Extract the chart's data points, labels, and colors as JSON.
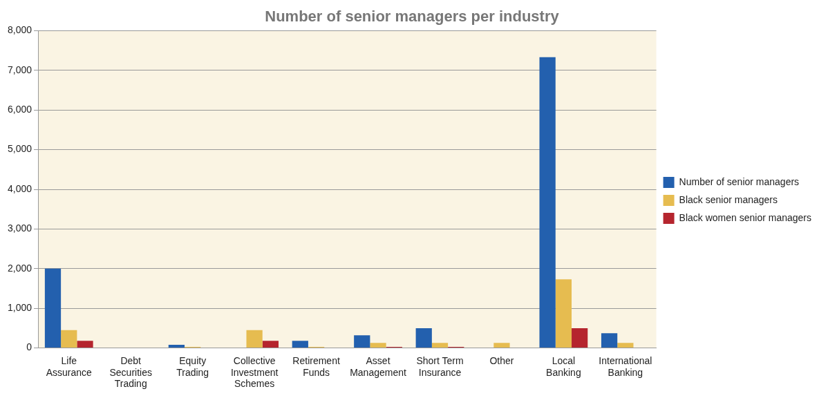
{
  "chart_data": {
    "type": "bar",
    "title": "Number of senior managers per industry",
    "categories": [
      "Life Assurance",
      "Debt Securities Trading",
      "Equity Trading",
      "Collective Investment Schemes",
      "Retirement Funds",
      "Asset Management",
      "Short Term Insurance",
      "Other",
      "Local Banking",
      "International Banking"
    ],
    "series": [
      {
        "name": "Number of senior managers",
        "color": "#2360ae",
        "values": [
          2000,
          0,
          80,
          0,
          180,
          320,
          500,
          0,
          7330,
          370
        ]
      },
      {
        "name": "Black senior managers",
        "color": "#e6bc50",
        "values": [
          450,
          0,
          30,
          450,
          30,
          130,
          130,
          130,
          1730,
          130
        ]
      },
      {
        "name": "Black women senior managers",
        "color": "#b5252e",
        "values": [
          180,
          0,
          0,
          180,
          0,
          30,
          30,
          0,
          500,
          0
        ]
      }
    ],
    "ylim": [
      0,
      8000
    ],
    "yticks": [
      0,
      {
        "value": 1000,
        "label": "1,000"
      },
      {
        "value": 2000,
        "label": "2,000"
      },
      {
        "value": 3000,
        "label": "3,000"
      },
      {
        "value": 4000,
        "label": "4,000"
      },
      {
        "value": 5000,
        "label": "5,000"
      },
      {
        "value": 6000,
        "label": "6,000"
      },
      {
        "value": 7000,
        "label": "7,000"
      },
      {
        "value": 8000,
        "label": "8,000"
      }
    ],
    "grid": "y",
    "legend": "right"
  }
}
